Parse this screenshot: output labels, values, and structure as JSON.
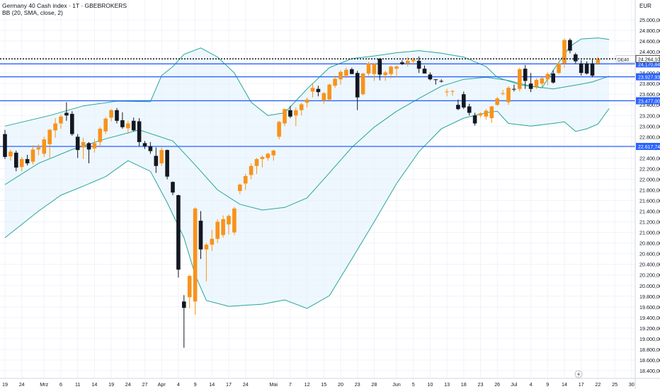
{
  "header": {
    "title": "Germany 40 Cash index · 1T · GBEBROKERS",
    "indicator": "BB (20, SMA, close, 2)",
    "currency": "EUR"
  },
  "colors": {
    "up": "#f7931a",
    "down": "#131722",
    "band": "#26a69a",
    "band_fill": "#e3f2fd",
    "level": "#2962ff",
    "last": "#131722",
    "grid": "#f0f3fa"
  },
  "icons": {
    "lightning": "lightning-icon"
  },
  "chart_data": {
    "type": "candlestick",
    "title": "Germany 40 Cash index · 1T · GBEBROKERS",
    "ylabel": "EUR",
    "ylim": [
      18320,
      25200
    ],
    "yticks": [
      18400,
      18600,
      18800,
      19000,
      19200,
      19400,
      19600,
      19800,
      20000,
      20200,
      20400,
      20600,
      20800,
      21000,
      21200,
      21400,
      21600,
      21800,
      22000,
      22200,
      22400,
      22600,
      22800,
      23000,
      23200,
      23400,
      23600,
      23800,
      24000,
      24200,
      24400,
      24600,
      24800,
      25000
    ],
    "ytick_labels": [
      "18.400,00",
      "18.600,00",
      "18.800,00",
      "19.000,00",
      "19.200,00",
      "19.400,00",
      "19.600,00",
      "19.800,00",
      "20.000,00",
      "20.200,00",
      "20.400,00",
      "20.600,00",
      "20.800,00",
      "21.000,00",
      "21.200,00",
      "21.400,00",
      "21.600,00",
      "21.800,00",
      "22.000,00",
      "22.200,00",
      "22.400,00",
      "22.600,00",
      "22.800,00",
      "23.000,00",
      "23.200,00",
      "23.400,00",
      "23.600,00",
      "23.800,00",
      "24.000,00",
      "24.200,00",
      "24.400,00",
      "24.600,00",
      "24.800,00",
      "25.000,00"
    ],
    "xticks": [
      {
        "i": 0,
        "label": "19"
      },
      {
        "i": 3,
        "label": "24"
      },
      {
        "i": 7,
        "label": "Mrz"
      },
      {
        "i": 10,
        "label": "6"
      },
      {
        "i": 13,
        "label": "11"
      },
      {
        "i": 16,
        "label": "14"
      },
      {
        "i": 19,
        "label": "19"
      },
      {
        "i": 22,
        "label": "24"
      },
      {
        "i": 25,
        "label": "27"
      },
      {
        "i": 28,
        "label": "Apr"
      },
      {
        "i": 31,
        "label": "4"
      },
      {
        "i": 34,
        "label": "9"
      },
      {
        "i": 37,
        "label": "14"
      },
      {
        "i": 40,
        "label": "17"
      },
      {
        "i": 43,
        "label": "24"
      },
      {
        "i": 48,
        "label": "Mai"
      },
      {
        "i": 51,
        "label": "7"
      },
      {
        "i": 54,
        "label": "12"
      },
      {
        "i": 57,
        "label": "15"
      },
      {
        "i": 60,
        "label": "20"
      },
      {
        "i": 63,
        "label": "23"
      },
      {
        "i": 66,
        "label": "28"
      },
      {
        "i": 70,
        "label": "Jun"
      },
      {
        "i": 73,
        "label": "5"
      },
      {
        "i": 76,
        "label": "10"
      },
      {
        "i": 79,
        "label": "13"
      },
      {
        "i": 82,
        "label": "18"
      },
      {
        "i": 85,
        "label": "23"
      },
      {
        "i": 88,
        "label": "26"
      },
      {
        "i": 91,
        "label": "Jul"
      },
      {
        "i": 94,
        "label": "4"
      },
      {
        "i": 97,
        "label": "9"
      },
      {
        "i": 100,
        "label": "14"
      },
      {
        "i": 103,
        "label": "17"
      },
      {
        "i": 106,
        "label": "22"
      },
      {
        "i": 109,
        "label": "25"
      },
      {
        "i": 112,
        "label": "30"
      }
    ],
    "candles": [
      {
        "o": 22850,
        "h": 22930,
        "l": 22380,
        "c": 22420
      },
      {
        "o": 22430,
        "h": 22560,
        "l": 22350,
        "c": 22520
      },
      {
        "o": 22500,
        "h": 22540,
        "l": 22150,
        "c": 22220
      },
      {
        "o": 22230,
        "h": 22420,
        "l": 22150,
        "c": 22380
      },
      {
        "o": 22380,
        "h": 22460,
        "l": 22260,
        "c": 22300
      },
      {
        "o": 22330,
        "h": 22640,
        "l": 22280,
        "c": 22560
      },
      {
        "o": 22560,
        "h": 22660,
        "l": 22450,
        "c": 22600
      },
      {
        "o": 22480,
        "h": 22800,
        "l": 22420,
        "c": 22750
      },
      {
        "o": 22660,
        "h": 22950,
        "l": 22400,
        "c": 22930
      },
      {
        "o": 22920,
        "h": 23150,
        "l": 22780,
        "c": 23050
      },
      {
        "o": 23050,
        "h": 23220,
        "l": 22950,
        "c": 23180
      },
      {
        "o": 23250,
        "h": 23450,
        "l": 23100,
        "c": 23200
      },
      {
        "o": 23230,
        "h": 23280,
        "l": 22820,
        "c": 22850
      },
      {
        "o": 22800,
        "h": 22850,
        "l": 22400,
        "c": 22550
      },
      {
        "o": 22600,
        "h": 22780,
        "l": 22380,
        "c": 22700
      },
      {
        "o": 22680,
        "h": 22700,
        "l": 22300,
        "c": 22560
      },
      {
        "o": 22580,
        "h": 22760,
        "l": 22500,
        "c": 22680
      },
      {
        "o": 22700,
        "h": 22980,
        "l": 22620,
        "c": 22950
      },
      {
        "o": 22900,
        "h": 23170,
        "l": 22850,
        "c": 23140
      },
      {
        "o": 23160,
        "h": 23320,
        "l": 23090,
        "c": 23300
      },
      {
        "o": 23300,
        "h": 23340,
        "l": 23050,
        "c": 23100
      },
      {
        "o": 23110,
        "h": 23260,
        "l": 22950,
        "c": 22980
      },
      {
        "o": 22960,
        "h": 23100,
        "l": 22850,
        "c": 23050
      },
      {
        "o": 23100,
        "h": 23160,
        "l": 22900,
        "c": 22920
      },
      {
        "o": 23090,
        "h": 23150,
        "l": 22620,
        "c": 22700
      },
      {
        "o": 22680,
        "h": 22720,
        "l": 22570,
        "c": 22620
      },
      {
        "o": 22620,
        "h": 22700,
        "l": 22480,
        "c": 22530
      },
      {
        "o": 22440,
        "h": 22600,
        "l": 22120,
        "c": 22250
      },
      {
        "o": 22300,
        "h": 22600,
        "l": 22250,
        "c": 22550
      },
      {
        "o": 22550,
        "h": 22560,
        "l": 22000,
        "c": 22050
      },
      {
        "o": 21950,
        "h": 21960,
        "l": 21700,
        "c": 21750
      },
      {
        "o": 21700,
        "h": 21710,
        "l": 20150,
        "c": 20300
      },
      {
        "o": 19700,
        "h": 19820,
        "l": 18830,
        "c": 19580
      },
      {
        "o": 19780,
        "h": 20200,
        "l": 19570,
        "c": 20180
      },
      {
        "o": 19700,
        "h": 21470,
        "l": 19450,
        "c": 21450
      },
      {
        "o": 21220,
        "h": 21400,
        "l": 20500,
        "c": 20680
      },
      {
        "o": 20680,
        "h": 20800,
        "l": 20080,
        "c": 20770
      },
      {
        "o": 20770,
        "h": 21050,
        "l": 20650,
        "c": 20880
      },
      {
        "o": 20880,
        "h": 21250,
        "l": 20800,
        "c": 21200
      },
      {
        "o": 20950,
        "h": 21320,
        "l": 20900,
        "c": 21250
      },
      {
        "o": 21150,
        "h": 21340,
        "l": 20960,
        "c": 21310
      },
      {
        "o": 21000,
        "h": 21480,
        "l": 20950,
        "c": 21450
      },
      {
        "o": 21780,
        "h": 21920,
        "l": 21720,
        "c": 21900
      },
      {
        "o": 21920,
        "h": 22100,
        "l": 21800,
        "c": 22060
      },
      {
        "o": 22080,
        "h": 22300,
        "l": 22000,
        "c": 22250
      },
      {
        "o": 22250,
        "h": 22400,
        "l": 22100,
        "c": 22380
      },
      {
        "o": 22380,
        "h": 22450,
        "l": 22220,
        "c": 22420
      },
      {
        "o": 22400,
        "h": 22500,
        "l": 22350,
        "c": 22480
      },
      {
        "o": 22450,
        "h": 22560,
        "l": 22350,
        "c": 22540
      },
      {
        "o": 22800,
        "h": 23100,
        "l": 22750,
        "c": 23080
      },
      {
        "o": 23050,
        "h": 23330,
        "l": 23000,
        "c": 23320
      },
      {
        "o": 23300,
        "h": 23380,
        "l": 23150,
        "c": 23180
      },
      {
        "o": 23200,
        "h": 23350,
        "l": 23000,
        "c": 23300
      },
      {
        "o": 23300,
        "h": 23440,
        "l": 23200,
        "c": 23410
      },
      {
        "o": 23440,
        "h": 23540,
        "l": 23350,
        "c": 23500
      },
      {
        "o": 23650,
        "h": 23800,
        "l": 23540,
        "c": 23720
      },
      {
        "o": 23700,
        "h": 23760,
        "l": 23560,
        "c": 23640
      },
      {
        "o": 23480,
        "h": 23640,
        "l": 23420,
        "c": 23620
      },
      {
        "o": 23500,
        "h": 23800,
        "l": 23480,
        "c": 23780
      },
      {
        "o": 23760,
        "h": 23950,
        "l": 23720,
        "c": 23890
      },
      {
        "o": 23880,
        "h": 24050,
        "l": 23780,
        "c": 24020
      },
      {
        "o": 23950,
        "h": 24100,
        "l": 23900,
        "c": 24060
      },
      {
        "o": 24070,
        "h": 24100,
        "l": 23980,
        "c": 23980
      },
      {
        "o": 24000,
        "h": 24040,
        "l": 23300,
        "c": 23540
      },
      {
        "o": 23600,
        "h": 24000,
        "l": 23580,
        "c": 23990
      },
      {
        "o": 23990,
        "h": 24210,
        "l": 23950,
        "c": 24180
      },
      {
        "o": 23980,
        "h": 24180,
        "l": 23850,
        "c": 24170
      },
      {
        "o": 24270,
        "h": 24280,
        "l": 23860,
        "c": 23970
      },
      {
        "o": 23960,
        "h": 24040,
        "l": 23850,
        "c": 24010
      },
      {
        "o": 23980,
        "h": 24140,
        "l": 23900,
        "c": 24120
      },
      {
        "o": 24080,
        "h": 24150,
        "l": 23920,
        "c": 24120
      },
      {
        "o": 24200,
        "h": 24240,
        "l": 24150,
        "c": 24170
      },
      {
        "o": 24180,
        "h": 24300,
        "l": 24120,
        "c": 24230
      },
      {
        "o": 24220,
        "h": 24290,
        "l": 24150,
        "c": 24250
      },
      {
        "o": 24230,
        "h": 24310,
        "l": 24000,
        "c": 24080
      },
      {
        "o": 24080,
        "h": 24140,
        "l": 23990,
        "c": 23990
      },
      {
        "o": 23970,
        "h": 24010,
        "l": 23860,
        "c": 23880
      },
      {
        "o": 23880,
        "h": 23880,
        "l": 23780,
        "c": 23870
      },
      {
        "o": 23850,
        "h": 23880,
        "l": 23820,
        "c": 23840
      },
      {
        "o": 23650,
        "h": 23700,
        "l": 23560,
        "c": 23650
      },
      {
        "o": 23650,
        "h": 23680,
        "l": 23570,
        "c": 23660
      },
      {
        "o": 23400,
        "h": 23500,
        "l": 23300,
        "c": 23320
      },
      {
        "o": 23600,
        "h": 23650,
        "l": 23320,
        "c": 23350
      },
      {
        "o": 23370,
        "h": 23420,
        "l": 23200,
        "c": 23250
      },
      {
        "o": 23200,
        "h": 23250,
        "l": 23010,
        "c": 23050
      },
      {
        "o": 23200,
        "h": 23260,
        "l": 23160,
        "c": 23240
      },
      {
        "o": 23180,
        "h": 23320,
        "l": 23120,
        "c": 23290
      },
      {
        "o": 23150,
        "h": 23380,
        "l": 23060,
        "c": 23370
      },
      {
        "o": 23400,
        "h": 23550,
        "l": 23380,
        "c": 23520
      },
      {
        "o": 23620,
        "h": 23680,
        "l": 23580,
        "c": 23620
      },
      {
        "o": 23450,
        "h": 23750,
        "l": 23400,
        "c": 23720
      },
      {
        "o": 23700,
        "h": 23780,
        "l": 23650,
        "c": 23690
      },
      {
        "o": 23700,
        "h": 24100,
        "l": 23650,
        "c": 24070
      },
      {
        "o": 24080,
        "h": 24150,
        "l": 23700,
        "c": 23850
      },
      {
        "o": 23800,
        "h": 24000,
        "l": 23640,
        "c": 23700
      },
      {
        "o": 23740,
        "h": 23900,
        "l": 23700,
        "c": 23870
      },
      {
        "o": 23800,
        "h": 23920,
        "l": 23740,
        "c": 23900
      },
      {
        "o": 23880,
        "h": 24010,
        "l": 23770,
        "c": 23980
      },
      {
        "o": 23990,
        "h": 24050,
        "l": 23800,
        "c": 23820
      },
      {
        "o": 24000,
        "h": 24200,
        "l": 23980,
        "c": 24180
      },
      {
        "o": 24180,
        "h": 24650,
        "l": 24100,
        "c": 24620
      },
      {
        "o": 24620,
        "h": 24650,
        "l": 24370,
        "c": 24420
      },
      {
        "o": 24350,
        "h": 24380,
        "l": 24180,
        "c": 24220
      },
      {
        "o": 24180,
        "h": 24240,
        "l": 23950,
        "c": 24000
      },
      {
        "o": 24180,
        "h": 24220,
        "l": 23970,
        "c": 23990
      },
      {
        "o": 24180,
        "h": 24260,
        "l": 23920,
        "c": 23950
      },
      {
        "o": 24180,
        "h": 24300,
        "l": 24150,
        "c": 24264
      }
    ],
    "bb_upper": [
      [
        0,
        23000
      ],
      [
        8,
        23200
      ],
      [
        14,
        23380
      ],
      [
        20,
        23470
      ],
      [
        26,
        23460
      ],
      [
        28,
        23950
      ],
      [
        30,
        24120
      ],
      [
        32,
        24350
      ],
      [
        35,
        24470
      ],
      [
        38,
        24300
      ],
      [
        41,
        24000
      ],
      [
        44,
        23450
      ],
      [
        47,
        23200
      ],
      [
        50,
        23250
      ],
      [
        54,
        23700
      ],
      [
        58,
        24100
      ],
      [
        62,
        24270
      ],
      [
        66,
        24320
      ],
      [
        70,
        24380
      ],
      [
        74,
        24420
      ],
      [
        78,
        24370
      ],
      [
        82,
        24300
      ],
      [
        86,
        24120
      ],
      [
        88,
        23920
      ],
      [
        92,
        23780
      ],
      [
        96,
        23720
      ],
      [
        98,
        24050
      ],
      [
        101,
        24500
      ],
      [
        103,
        24640
      ],
      [
        106,
        24660
      ],
      [
        108,
        24630
      ]
    ],
    "bb_basis": [
      [
        0,
        21900
      ],
      [
        6,
        22300
      ],
      [
        12,
        22560
      ],
      [
        18,
        22760
      ],
      [
        24,
        22930
      ],
      [
        30,
        22720
      ],
      [
        34,
        22270
      ],
      [
        38,
        21800
      ],
      [
        42,
        21530
      ],
      [
        46,
        21420
      ],
      [
        50,
        21470
      ],
      [
        54,
        21650
      ],
      [
        58,
        22120
      ],
      [
        62,
        22600
      ],
      [
        66,
        22980
      ],
      [
        70,
        23280
      ],
      [
        74,
        23520
      ],
      [
        78,
        23750
      ],
      [
        82,
        23880
      ],
      [
        86,
        23920
      ],
      [
        90,
        23860
      ],
      [
        94,
        23750
      ],
      [
        98,
        23700
      ],
      [
        102,
        23770
      ],
      [
        105,
        23830
      ],
      [
        108,
        23940
      ]
    ],
    "bb_lower": [
      [
        0,
        20900
      ],
      [
        6,
        21400
      ],
      [
        10,
        21700
      ],
      [
        14,
        21870
      ],
      [
        18,
        22050
      ],
      [
        22,
        22350
      ],
      [
        26,
        22150
      ],
      [
        29,
        21560
      ],
      [
        32,
        20900
      ],
      [
        34,
        20200
      ],
      [
        36,
        19720
      ],
      [
        40,
        19610
      ],
      [
        46,
        19650
      ],
      [
        50,
        19730
      ],
      [
        54,
        19570
      ],
      [
        58,
        19810
      ],
      [
        62,
        20500
      ],
      [
        66,
        21200
      ],
      [
        70,
        21920
      ],
      [
        74,
        22520
      ],
      [
        78,
        22950
      ],
      [
        82,
        23150
      ],
      [
        86,
        23250
      ],
      [
        88,
        23280
      ],
      [
        90,
        23050
      ],
      [
        94,
        23000
      ],
      [
        98,
        23050
      ],
      [
        100,
        23080
      ],
      [
        102,
        22900
      ],
      [
        104,
        22950
      ],
      [
        106,
        23040
      ],
      [
        108,
        23330
      ]
    ],
    "levels": [
      {
        "price": 24170.84,
        "label": "24.170,84"
      },
      {
        "price": 23927.93,
        "label": "23.927,93"
      },
      {
        "price": 23477.0,
        "label": "23.477,00"
      },
      {
        "price": 22617.74,
        "label": "22.617,74"
      }
    ],
    "last_price": {
      "price": 24264.1,
      "label": "24.264,10",
      "tag": "DE40"
    },
    "grid": true,
    "legend": "top-left"
  }
}
